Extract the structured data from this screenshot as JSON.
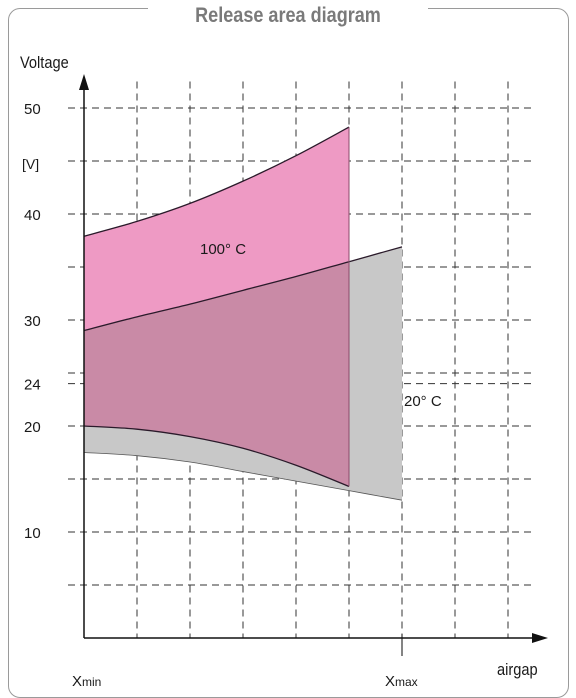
{
  "chart_data": {
    "type": "area",
    "title": "Release area diagram",
    "ylabel": "Voltage",
    "yunit": "[V]",
    "xlabel": "airgap",
    "x_ticks": {
      "min_label": "X",
      "min_sub": "min",
      "max_label": "X",
      "max_sub": "max"
    },
    "y_ticks": [
      10,
      20,
      24,
      30,
      40,
      50
    ],
    "ylim": [
      0,
      52
    ],
    "x_grid_count": 8,
    "x_max_gridline": 6,
    "grid": true,
    "series": [
      {
        "name": "20° C",
        "color": "#c8c8c8",
        "x_end": 6,
        "upper": [
          [
            0,
            29.0
          ],
          [
            1,
            30.3
          ],
          [
            2,
            31.5
          ],
          [
            3,
            32.8
          ],
          [
            4,
            34.1
          ],
          [
            5,
            35.5
          ],
          [
            6,
            36.9
          ]
        ],
        "lower": [
          [
            0,
            17.5
          ],
          [
            1,
            17.2
          ],
          [
            2,
            16.6
          ],
          [
            3,
            15.7
          ],
          [
            4,
            14.8
          ],
          [
            5,
            13.9
          ],
          [
            6,
            13.0
          ]
        ]
      },
      {
        "name": "100° C",
        "color": "#ee9ac4",
        "x_end": 5,
        "upper": [
          [
            0,
            37.9
          ],
          [
            1,
            39.3
          ],
          [
            2,
            41.0
          ],
          [
            3,
            43.1
          ],
          [
            4,
            45.5
          ],
          [
            5,
            48.2
          ]
        ],
        "lower": [
          [
            0,
            20.0
          ],
          [
            1,
            19.7
          ],
          [
            2,
            19.0
          ],
          [
            3,
            17.9
          ],
          [
            4,
            16.3
          ],
          [
            5,
            14.3
          ]
        ]
      }
    ],
    "overlap_color": "#c98aa6"
  }
}
